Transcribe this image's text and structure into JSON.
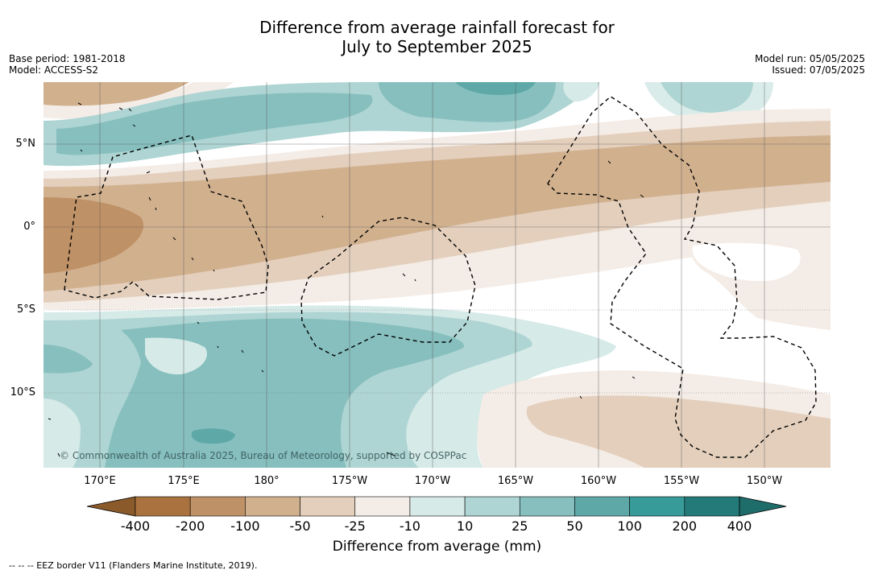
{
  "title_line1": "Difference from average rainfall forecast for",
  "title_line2": "July to September 2025",
  "base_period": "Base period: 1981-2018",
  "model": "Model: ACCESS-S2",
  "model_run": "Model run: 05/05/2025",
  "issued": "Issued: 07/05/2025",
  "lat_labels": [
    "5°N",
    "0°",
    "5°S",
    "10°S"
  ],
  "lon_labels": [
    "170°E",
    "175°E",
    "180°",
    "175°W",
    "170°W",
    "165°W",
    "160°W",
    "155°W",
    "150°W"
  ],
  "colorbar": {
    "title": "Difference from average (mm)",
    "ticks": [
      "-400",
      "-200",
      "-100",
      "-50",
      "-25",
      "-10",
      "10",
      "25",
      "50",
      "100",
      "200",
      "400"
    ],
    "colors": [
      "#a9723f",
      "#bf9166",
      "#d1b08e",
      "#e3cfbc",
      "#f4ece6",
      "#ffffff",
      "#d6eae8",
      "#aed5d3",
      "#86bfbe",
      "#5ea9a8",
      "#379b99",
      "#237a78"
    ]
  },
  "copyright": "© Commonwealth of Australia 2025, Bureau of Meteorology, supported by COSPPac",
  "eez_note": "--  --  -- EEZ border V11 (Flanders Marine Institute, 2019)."
}
